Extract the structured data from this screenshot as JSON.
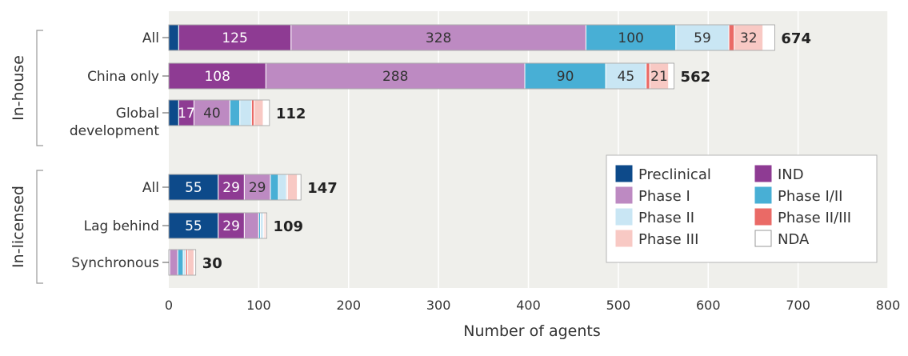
{
  "chart_data": {
    "type": "bar",
    "orientation": "horizontal",
    "stacked": true,
    "xlabel": "Number of agents",
    "xlim": [
      0,
      800
    ],
    "xticks": [
      0,
      100,
      200,
      300,
      400,
      500,
      600,
      700,
      800
    ],
    "groups": [
      {
        "name": "In-house",
        "rows": [
          "All",
          "China only",
          "Global development"
        ]
      },
      {
        "name": "In-licensed",
        "rows": [
          "All",
          "Lag behind",
          "Synchronous"
        ]
      }
    ],
    "categories": [
      {
        "label": "All",
        "label_lines": [
          "All"
        ],
        "total": "674"
      },
      {
        "label": "China only",
        "label_lines": [
          "China only"
        ],
        "total": "562"
      },
      {
        "label": "Global development",
        "label_lines": [
          "Global",
          "development"
        ],
        "total": "112"
      },
      {
        "label": "All",
        "label_lines": [
          "All"
        ],
        "total": "147"
      },
      {
        "label": "Lag behind",
        "label_lines": [
          "Lag behind"
        ],
        "total": "109"
      },
      {
        "label": "Synchronous",
        "label_lines": [
          "Synchronous"
        ],
        "total": "30"
      }
    ],
    "series": [
      {
        "name": "Preclinical",
        "color": "#0d4a8a",
        "label_color": "#ffffff",
        "values": [
          11,
          0,
          11,
          55,
          55,
          1
        ],
        "labels": [
          "",
          "",
          "",
          "55",
          "55",
          ""
        ]
      },
      {
        "name": "IND",
        "color": "#8e3b93",
        "label_color": "#ffffff",
        "values": [
          125,
          108,
          17,
          29,
          29,
          0
        ],
        "labels": [
          "125",
          "108",
          "17",
          "29",
          "29",
          ""
        ]
      },
      {
        "name": "Phase I",
        "color": "#bd8ac2",
        "label_color": "#333333",
        "values": [
          328,
          288,
          40,
          29,
          16,
          9
        ],
        "labels": [
          "328",
          "288",
          "40",
          "29",
          "",
          ""
        ]
      },
      {
        "name": "Phase I/II",
        "color": "#48afd5",
        "label_color": "#333333",
        "values": [
          100,
          90,
          11,
          9,
          2,
          6
        ],
        "labels": [
          "100",
          "90",
          "",
          "",
          "",
          ""
        ]
      },
      {
        "name": "Phase II",
        "color": "#c9e6f4",
        "label_color": "#333333",
        "values": [
          59,
          45,
          13,
          9,
          3,
          3
        ],
        "labels": [
          "59",
          "45",
          "",
          "",
          "",
          ""
        ]
      },
      {
        "name": "Phase II/III",
        "color": "#ea6a66",
        "label_color": "#333333",
        "values": [
          6,
          4,
          3,
          1,
          1,
          2
        ],
        "labels": [
          "",
          "",
          "",
          "",
          "",
          ""
        ]
      },
      {
        "name": "Phase III",
        "color": "#f8c9c4",
        "label_color": "#333333",
        "values": [
          32,
          21,
          10,
          11,
          2,
          7
        ],
        "labels": [
          "32",
          "21",
          "",
          "",
          "",
          ""
        ]
      },
      {
        "name": "NDA",
        "color": "#ffffff",
        "label_color": "#333333",
        "values": [
          13,
          6,
          7,
          4,
          1,
          2
        ],
        "labels": [
          "",
          "",
          "",
          "",
          "",
          ""
        ]
      }
    ],
    "legend": {
      "position": "right",
      "columns": 2
    },
    "grid": true
  },
  "colors": {
    "plot_background": "#efefeb",
    "grid_line": "#ffffff",
    "axis_text": "#333333",
    "bracket": "#999999"
  }
}
